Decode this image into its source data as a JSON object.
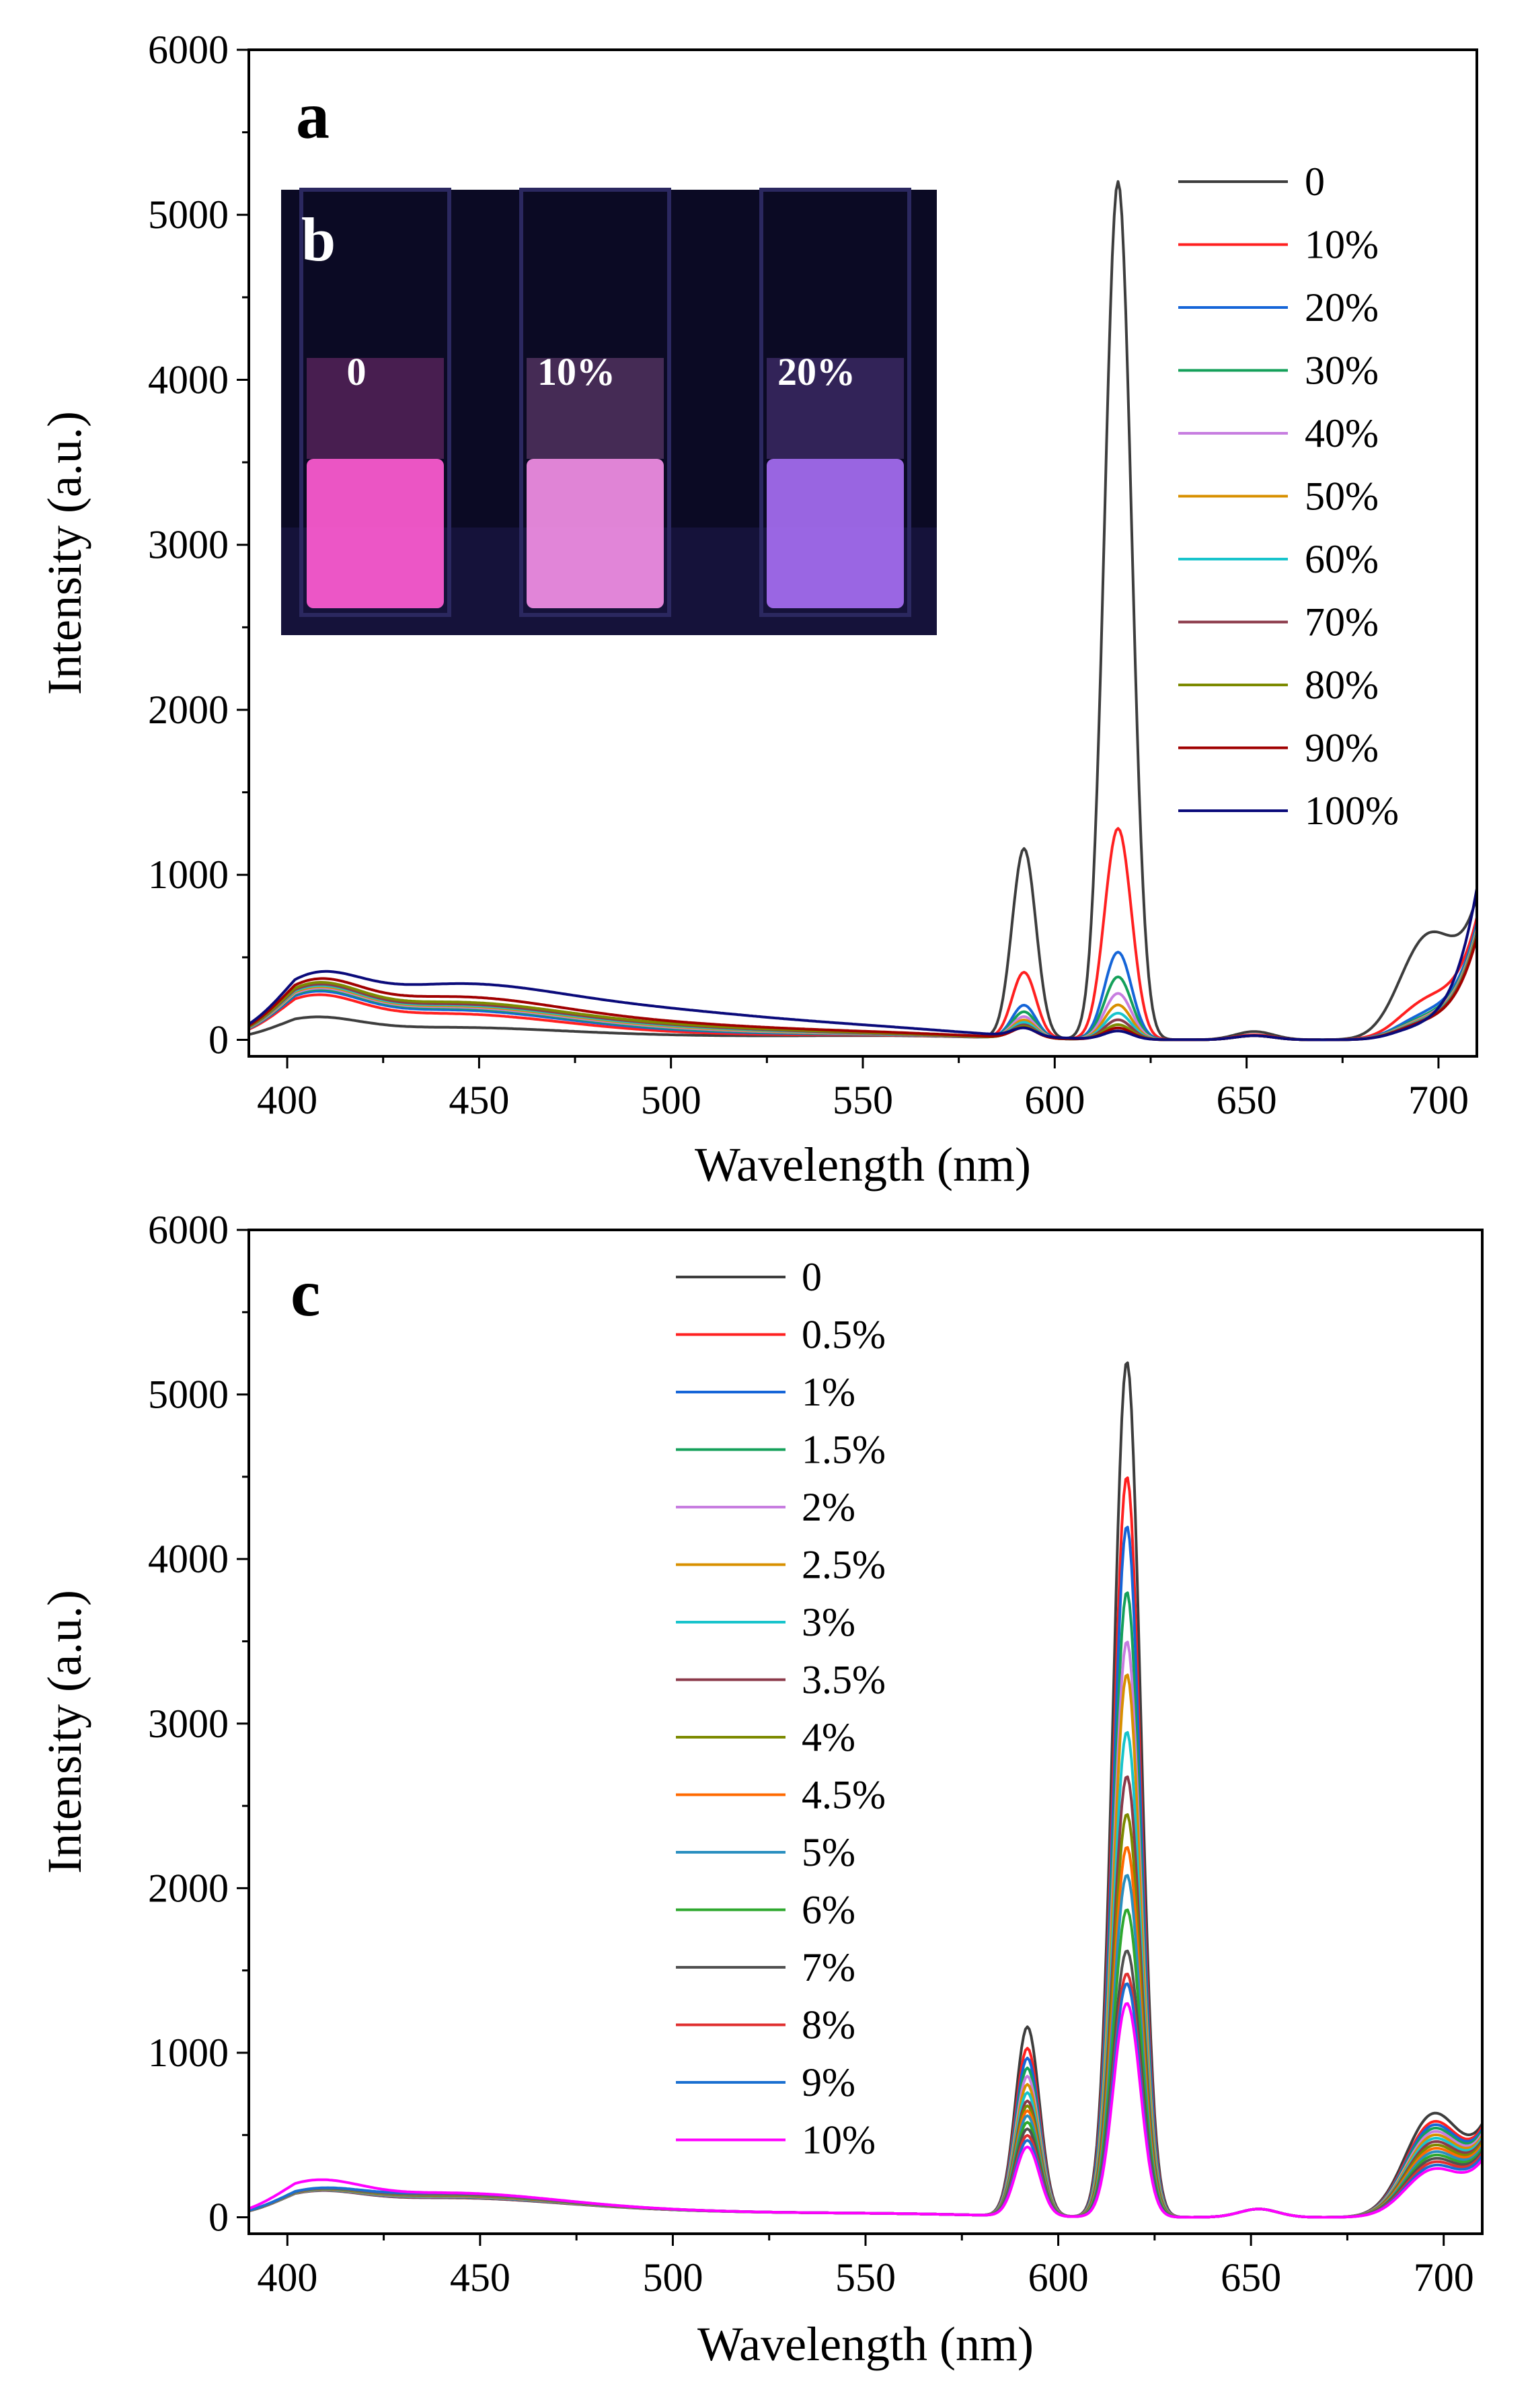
{
  "chart_data": [
    {
      "panel_label": "a",
      "type": "line",
      "xlabel": "Wavelength (nm)",
      "ylabel": "Intensity (a.u.)",
      "xlim": [
        390,
        710
      ],
      "ylim": [
        -100,
        6000
      ],
      "xticks": [
        400,
        450,
        500,
        550,
        600,
        650,
        700
      ],
      "yticks": [
        0,
        1000,
        2000,
        3000,
        4000,
        5000,
        6000
      ],
      "legend_placement": "top-right",
      "inset": {
        "label": "b",
        "sample_labels": [
          "0",
          "10%",
          "20%"
        ],
        "vial_colors": [
          "#ff5cd2",
          "#f38fe6",
          "#a66ef2"
        ]
      },
      "series": [
        {
          "name": "0",
          "color": "#3d3d3d",
          "values": [
            100,
            70,
            20,
            20,
            1150,
            5200,
            50,
            610,
            760
          ]
        },
        {
          "name": "10%",
          "color": "#ff2020",
          "values": [
            190,
            150,
            30,
            20,
            400,
            1280,
            30,
            230,
            700
          ]
        },
        {
          "name": "20%",
          "color": "#1565d8",
          "values": [
            200,
            170,
            40,
            20,
            200,
            530,
            25,
            150,
            680
          ]
        },
        {
          "name": "30%",
          "color": "#14a05a",
          "values": [
            205,
            180,
            45,
            20,
            160,
            380,
            25,
            130,
            660
          ]
        },
        {
          "name": "40%",
          "color": "#c77de0",
          "values": [
            210,
            185,
            50,
            20,
            130,
            280,
            25,
            120,
            650
          ]
        },
        {
          "name": "50%",
          "color": "#d89000",
          "values": [
            215,
            190,
            55,
            20,
            110,
            210,
            25,
            115,
            640
          ]
        },
        {
          "name": "60%",
          "color": "#18c4cc",
          "values": [
            220,
            195,
            60,
            20,
            95,
            160,
            25,
            110,
            630
          ]
        },
        {
          "name": "70%",
          "color": "#8b3a4a",
          "values": [
            225,
            200,
            65,
            20,
            80,
            120,
            25,
            105,
            620
          ]
        },
        {
          "name": "80%",
          "color": "#7c8a00",
          "values": [
            230,
            210,
            70,
            22,
            70,
            90,
            25,
            100,
            610
          ]
        },
        {
          "name": "90%",
          "color": "#a00000",
          "values": [
            235,
            240,
            80,
            25,
            60,
            70,
            25,
            100,
            600
          ]
        },
        {
          "name": "100%",
          "color": "#0a0a7a",
          "values": [
            240,
            300,
            150,
            40,
            50,
            50,
            25,
            90,
            900
          ]
        }
      ]
    },
    {
      "panel_label": "c",
      "type": "line",
      "xlabel": "Wavelength (nm)",
      "ylabel": "Intensity (a.u.)",
      "xlim": [
        390,
        710
      ],
      "ylim": [
        -100,
        6000
      ],
      "xticks": [
        400,
        450,
        500,
        550,
        600,
        650,
        700
      ],
      "yticks": [
        0,
        1000,
        2000,
        3000,
        4000,
        5000,
        6000
      ],
      "legend_placement": "top-center",
      "series": [
        {
          "name": "0",
          "color": "#3d3d3d",
          "values": [
            100,
            110,
            30,
            15,
            1150,
            5200,
            50,
            610,
            460
          ]
        },
        {
          "name": "0.5%",
          "color": "#ff2020",
          "values": [
            100,
            112,
            30,
            15,
            1020,
            4500,
            50,
            560,
            450
          ]
        },
        {
          "name": "1%",
          "color": "#1565d8",
          "values": [
            100,
            114,
            30,
            15,
            960,
            4200,
            50,
            540,
            440
          ]
        },
        {
          "name": "1.5%",
          "color": "#14a05a",
          "values": [
            100,
            116,
            30,
            15,
            900,
            3800,
            50,
            520,
            430
          ]
        },
        {
          "name": "2%",
          "color": "#c77de0",
          "values": [
            100,
            118,
            30,
            15,
            850,
            3500,
            50,
            500,
            420
          ]
        },
        {
          "name": "2.5%",
          "color": "#d89000",
          "values": [
            100,
            120,
            30,
            15,
            800,
            3300,
            50,
            480,
            410
          ]
        },
        {
          "name": "3%",
          "color": "#18c4cc",
          "values": [
            100,
            122,
            30,
            15,
            750,
            2950,
            50,
            460,
            400
          ]
        },
        {
          "name": "3.5%",
          "color": "#8b3a4a",
          "values": [
            100,
            124,
            30,
            15,
            700,
            2680,
            50,
            440,
            390
          ]
        },
        {
          "name": "4%",
          "color": "#7c8a00",
          "values": [
            100,
            126,
            30,
            15,
            670,
            2450,
            50,
            420,
            380
          ]
        },
        {
          "name": "4.5%",
          "color": "#ff6a00",
          "values": [
            100,
            128,
            30,
            15,
            640,
            2250,
            50,
            400,
            370
          ]
        },
        {
          "name": "5%",
          "color": "#2a8fc0",
          "values": [
            100,
            130,
            30,
            15,
            610,
            2080,
            50,
            380,
            360
          ]
        },
        {
          "name": "6%",
          "color": "#2fa82f",
          "values": [
            100,
            132,
            30,
            15,
            570,
            1870,
            50,
            360,
            350
          ]
        },
        {
          "name": "7%",
          "color": "#505050",
          "values": [
            100,
            134,
            30,
            15,
            530,
            1620,
            50,
            340,
            340
          ]
        },
        {
          "name": "8%",
          "color": "#e03030",
          "values": [
            100,
            136,
            30,
            15,
            490,
            1480,
            50,
            320,
            330
          ]
        },
        {
          "name": "9%",
          "color": "#1a6fd0",
          "values": [
            100,
            138,
            30,
            15,
            460,
            1420,
            50,
            300,
            320
          ]
        },
        {
          "name": "10%",
          "color": "#ff00ff",
          "values": [
            150,
            140,
            30,
            15,
            420,
            1300,
            50,
            280,
            300
          ]
        }
      ]
    }
  ]
}
